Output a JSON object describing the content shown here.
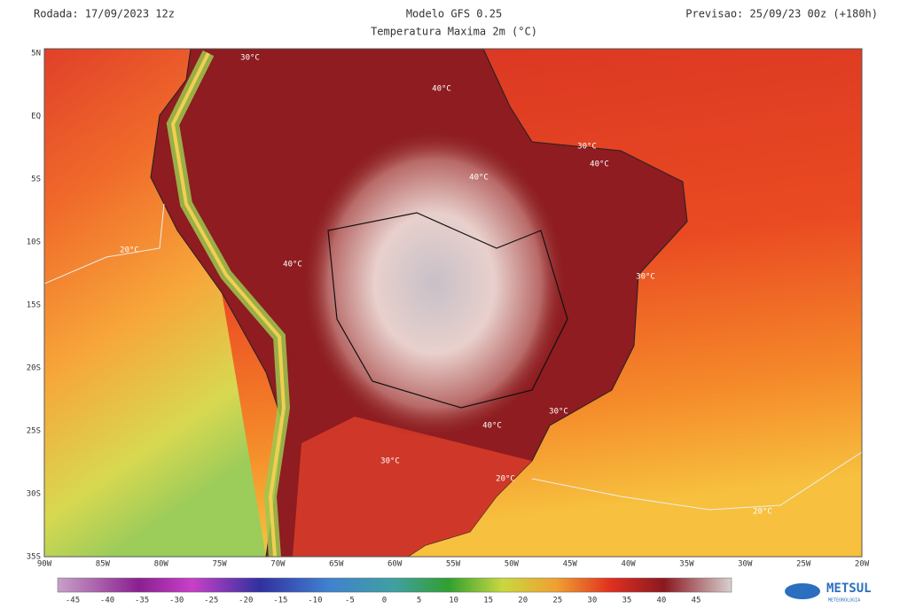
{
  "header": {
    "run": "Rodada: 17/09/2023 12z",
    "title": "Modelo GFS 0.25",
    "subtitle": "Temperatura Maxima 2m (°C)",
    "forecast": "Previsao: 25/09/23 00z (+180h)"
  },
  "axes": {
    "lat_labels": [
      "5N",
      "EQ",
      "5S",
      "10S",
      "15S",
      "20S",
      "25S",
      "30S",
      "35S"
    ],
    "lon_labels": [
      "90W",
      "85W",
      "80W",
      "75W",
      "70W",
      "65W",
      "60W",
      "55W",
      "50W",
      "45W",
      "40W",
      "35W",
      "30W",
      "25W",
      "20W"
    ]
  },
  "contour_labels": [
    "30°C",
    "40°C",
    "30°C",
    "40°C",
    "40°C",
    "20°C",
    "40°C",
    "30°C",
    "40°C",
    "30°C",
    "30°C",
    "20°C",
    "20°C"
  ],
  "colorbar": {
    "labels": [
      "-45",
      "-40",
      "-35",
      "-30",
      "-25",
      "-20",
      "-15",
      "-10",
      "-5",
      "0",
      "5",
      "10",
      "15",
      "20",
      "25",
      "30",
      "35",
      "40",
      "45"
    ]
  },
  "logo": {
    "name": "METSUL",
    "tagline": "METEOROLOGIA"
  }
}
